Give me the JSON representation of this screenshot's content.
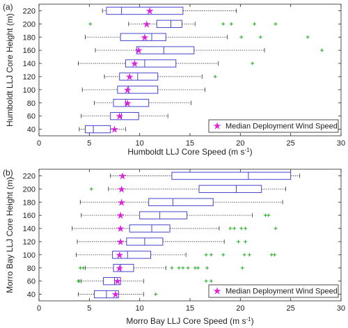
{
  "chart_data": [
    {
      "type": "boxplot",
      "panel_label": "(a)",
      "xlabel": "Humboldt LLJ Core Speed (m s",
      "xlabel_sup": "-1",
      "xlabel_end": ")",
      "ylabel": "Humboldt LLJ Core Height (m)",
      "xlim": [
        0,
        30
      ],
      "x_ticks": [
        "0",
        "5",
        "10",
        "15",
        "20",
        "25",
        "30"
      ],
      "categories": [
        "40",
        "60",
        "80",
        "100",
        "120",
        "140",
        "160",
        "180",
        "200",
        "220"
      ],
      "legend": {
        "label": "Median Deployment Wind Speed",
        "placement": "bottom-right"
      },
      "colors": {
        "box": "#4444cc",
        "whisker": "#333333",
        "outlier": "#22aa22",
        "deployment": "#dd22dd"
      },
      "boxes": [
        {
          "height": "40",
          "whisker_low": 4.0,
          "q1": 4.6,
          "median": 5.4,
          "q3": 7.1,
          "whisker_high": 8.6,
          "outliers": [],
          "deployment": 7.5
        },
        {
          "height": "60",
          "whisker_low": 4.2,
          "q1": 7.1,
          "median": 8.2,
          "q3": 9.9,
          "whisker_high": 12.8,
          "outliers": [],
          "deployment": 8.0
        },
        {
          "height": "80",
          "whisker_low": 5.5,
          "q1": 7.4,
          "median": 8.6,
          "q3": 10.9,
          "whisker_high": 15.1,
          "outliers": [],
          "deployment": 8.8
        },
        {
          "height": "100",
          "whisker_low": 4.3,
          "q1": 7.8,
          "median": 8.9,
          "q3": 11.8,
          "whisker_high": 16.5,
          "outliers": [],
          "deployment": 8.8
        },
        {
          "height": "120",
          "whisker_low": 6.5,
          "q1": 8.0,
          "median": 9.8,
          "q3": 11.8,
          "whisker_high": 16.2,
          "outliers": [
            17.5
          ],
          "deployment": 9.0
        },
        {
          "height": "140",
          "whisker_low": 3.9,
          "q1": 8.6,
          "median": 10.5,
          "q3": 13.6,
          "whisker_high": 17.8,
          "outliers": [
            21.2
          ],
          "deployment": 9.5
        },
        {
          "height": "160",
          "whisker_low": 5.6,
          "q1": 9.7,
          "median": 12.4,
          "q3": 15.4,
          "whisker_high": 22.4,
          "outliers": [
            28.1
          ],
          "deployment": 9.9
        },
        {
          "height": "180",
          "whisker_low": 4.6,
          "q1": 8.1,
          "median": 11.2,
          "q3": 12.6,
          "whisker_high": 18.7,
          "outliers": [
            20.1,
            22.0,
            26.7
          ],
          "deployment": 10.5
        },
        {
          "height": "200",
          "whisker_low": 8.9,
          "q1": 11.7,
          "median": 13.1,
          "q3": 14.2,
          "whisker_high": 15.5,
          "outliers": [
            5.1,
            18.3,
            19.1,
            21.4,
            23.5
          ],
          "deployment": 10.7
        },
        {
          "height": "220",
          "whisker_low": 6.3,
          "q1": 6.7,
          "median": 8.2,
          "q3": 14.3,
          "whisker_high": 19.6,
          "outliers": [],
          "deployment": 11.0
        }
      ]
    },
    {
      "type": "boxplot",
      "panel_label": "(b)",
      "xlabel": "Morro Bay LLJ Core Speed (m s",
      "xlabel_sup": "-1",
      "xlabel_end": ")",
      "ylabel": "Morro Bay LLJ Core Height (m)",
      "xlim": [
        0,
        30
      ],
      "x_ticks": [
        "0",
        "5",
        "10",
        "15",
        "20",
        "25",
        "30"
      ],
      "categories": [
        "40",
        "60",
        "80",
        "100",
        "120",
        "140",
        "160",
        "180",
        "200",
        "220"
      ],
      "legend": {
        "label": "Median Deployment Wind Speed",
        "placement": "bottom-right"
      },
      "colors": {
        "box": "#4444cc",
        "whisker": "#333333",
        "outlier": "#22aa22",
        "deployment": "#dd22dd"
      },
      "boxes": [
        {
          "height": "40",
          "whisker_low": 3.9,
          "q1": 5.5,
          "median": 6.7,
          "q3": 7.9,
          "whisker_high": 10.4,
          "outliers": [
            11.6
          ],
          "deployment": 7.6
        },
        {
          "height": "60",
          "whisker_low": 4.2,
          "q1": 6.4,
          "median": 7.5,
          "q3": 8.1,
          "whisker_high": 10.4,
          "outliers": [
            3.9,
            4.0,
            16.6,
            17.1
          ],
          "deployment": 7.8
        },
        {
          "height": "80",
          "whisker_low": 4.6,
          "q1": 7.4,
          "median": 8.1,
          "q3": 9.4,
          "whisker_high": 12.6,
          "outliers": [
            4.1,
            4.4,
            13.2,
            13.9,
            14.3,
            14.8,
            15.5,
            15.8,
            16.7,
            20.2
          ],
          "deployment": 8.0
        },
        {
          "height": "100",
          "whisker_low": 3.7,
          "q1": 7.3,
          "median": 8.8,
          "q3": 11.1,
          "whisker_high": 14.6,
          "outliers": [
            16.6,
            17.1,
            18.3,
            20.4,
            20.9,
            23.1,
            23.4
          ],
          "deployment": 8.0
        },
        {
          "height": "120",
          "whisker_low": 3.8,
          "q1": 8.7,
          "median": 10.5,
          "q3": 12.3,
          "whisker_high": 18.4,
          "outliers": [
            19.8,
            20.5
          ],
          "deployment": 8.1
        },
        {
          "height": "140",
          "whisker_low": 3.3,
          "q1": 9.0,
          "median": 11.2,
          "q3": 13.0,
          "whisker_high": 17.9,
          "outliers": [
            19.0,
            19.4,
            20.1,
            20.5,
            23.5
          ],
          "deployment": 8.1
        },
        {
          "height": "160",
          "whisker_low": 4.2,
          "q1": 10.0,
          "median": 12.0,
          "q3": 14.7,
          "whisker_high": 21.2,
          "outliers": [
            22.5,
            22.8
          ],
          "deployment": 8.1
        },
        {
          "height": "180",
          "whisker_low": 4.1,
          "q1": 10.9,
          "median": 13.3,
          "q3": 17.3,
          "whisker_high": 24.2,
          "outliers": [],
          "deployment": 8.2
        },
        {
          "height": "200",
          "whisker_low": 6.9,
          "q1": 15.9,
          "median": 19.6,
          "q3": 22.1,
          "whisker_high": 24.5,
          "outliers": [
            5.2
          ],
          "deployment": 8.2
        },
        {
          "height": "220",
          "whisker_low": 7.1,
          "q1": 13.2,
          "median": 20.8,
          "q3": 25.0,
          "whisker_high": 25.9,
          "outliers": [],
          "deployment": 8.3
        }
      ]
    }
  ]
}
